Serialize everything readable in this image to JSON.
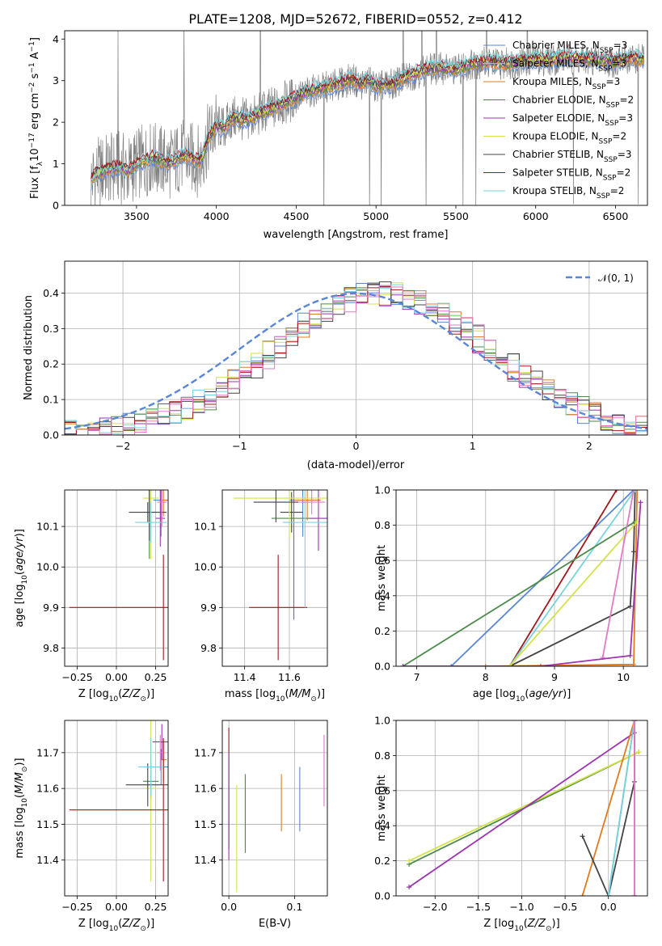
{
  "colors": {
    "Chabrier MILES": "#5a86d8",
    "Salpeter MILES": "#b3b3b3",
    "Kroupa MILES": "#e07b1f",
    "Chabrier ELODIE": "#4e8a4a",
    "Salpeter ELODIE": "#9b35b0",
    "Kroupa ELODIE": "#d4e24a",
    "Chabrier STELIB": "#444444",
    "Salpeter STELIB": "#a3161c",
    "Kroupa STELIB": "#79d3dc",
    "pink": "#e27bc4"
  },
  "chart_data": [
    {
      "id": "spectrum",
      "type": "line",
      "title": "PLATE=1208, MJD=52672, FIBERID=0552, z=0.412",
      "xlabel": "wavelength [Angstrom, rest frame]",
      "ylabel": "Flux [f_λ 10^-17 erg cm^-2 s^-1 A^-1]",
      "xlim": [
        3050,
        6700
      ],
      "ylim": [
        0,
        4.2
      ],
      "xticks": [
        3500,
        4000,
        4500,
        5000,
        5500,
        6000,
        6500
      ],
      "yticks": [
        0,
        1,
        2,
        3,
        4
      ],
      "grid": false,
      "legend_position": "upper-right",
      "legend": [
        {
          "name": "Chabrier MILES",
          "nssp": "3"
        },
        {
          "name": "Salpeter MILES",
          "nssp": "3"
        },
        {
          "name": "Kroupa MILES",
          "nssp": "3"
        },
        {
          "name": "Chabrier ELODIE",
          "nssp": "2"
        },
        {
          "name": "Salpeter ELODIE",
          "nssp": "3"
        },
        {
          "name": "Kroupa ELODIE",
          "nssp": "2"
        },
        {
          "name": "Chabrier STELIB",
          "nssp": "3"
        },
        {
          "name": "Salpeter STELIB",
          "nssp": "2"
        },
        {
          "name": "Kroupa STELIB",
          "nssp": "2"
        }
      ],
      "model_continuum": {
        "x": [
          3215,
          3230,
          3300,
          3400,
          3450,
          3500,
          3600,
          3700,
          3800,
          3900,
          3950,
          4000,
          4050,
          4100,
          4200,
          4300,
          4400,
          4500,
          4600,
          4700,
          4800,
          4850,
          4900,
          4950,
          5000,
          5100,
          5200,
          5300,
          5400,
          5500,
          5600,
          5700,
          5800,
          5900,
          6000,
          6100,
          6200,
          6300,
          6400,
          6500,
          6600,
          6680
        ],
        "y": [
          0.55,
          0.7,
          0.85,
          0.92,
          0.82,
          1.0,
          1.15,
          1.0,
          1.2,
          1.05,
          1.6,
          1.9,
          1.85,
          2.1,
          2.05,
          2.25,
          2.4,
          2.6,
          2.75,
          2.85,
          2.95,
          3.05,
          2.9,
          3.0,
          2.85,
          2.9,
          3.1,
          3.25,
          3.3,
          3.25,
          3.4,
          3.45,
          3.4,
          3.45,
          3.5,
          3.5,
          3.55,
          3.5,
          3.5,
          3.45,
          3.55,
          3.5
        ]
      }
    },
    {
      "id": "residuals",
      "type": "histogram",
      "xlabel": "(data-model)/error",
      "ylabel": "Normed distribution",
      "xlim": [
        -2.5,
        2.5
      ],
      "ylim": [
        0,
        0.49
      ],
      "xticks": [
        -2,
        -1,
        0,
        1,
        2
      ],
      "yticks": [
        0.0,
        0.1,
        0.2,
        0.3,
        0.4
      ],
      "grid": true,
      "legend_position": "upper-right",
      "reference_label": "𝒩(0, 1)"
    },
    {
      "id": "age_vs_Z",
      "type": "errorbar",
      "xlabel": "Z [log10(Z/Z⊙)]",
      "ylabel": "age  [log10(age/yr)]",
      "xlim": [
        -0.33,
        0.33
      ],
      "ylim": [
        9.755,
        10.19
      ],
      "xticks": [
        -0.25,
        0.0,
        0.25
      ],
      "yticks": [
        9.8,
        9.9,
        10.0,
        10.1
      ],
      "grid": true,
      "points": [
        {
          "x": 0.285,
          "y": 10.165,
          "xerr": 0.05,
          "yerr": 0.09,
          "color": "#5a86d8"
        },
        {
          "x": 0.3,
          "y": 10.165,
          "xerr": 0.02,
          "yerr": 0.04,
          "color": "#e07b1f"
        },
        {
          "x": 0.2,
          "y": 10.135,
          "xerr": 0.12,
          "yerr": 0.025,
          "color": "#444444"
        },
        {
          "x": 0.21,
          "y": 10.12,
          "xerr": 0.0,
          "yerr": 0.1,
          "color": "#4e8a4a"
        },
        {
          "x": 0.28,
          "y": 10.12,
          "xerr": 0.03,
          "yerr": 0.07,
          "color": "#9b35b0"
        },
        {
          "x": 0.22,
          "y": 10.17,
          "xerr": 0.05,
          "yerr": 0.15,
          "color": "#d4e24a"
        },
        {
          "x": 0.21,
          "y": 10.165,
          "xerr": 0.0,
          "yerr": 0.1,
          "color": "#444444"
        },
        {
          "x": 0.3,
          "y": 9.9,
          "xerr": 0.6,
          "yerr": 0.13,
          "color": "#a3161c"
        },
        {
          "x": 0.22,
          "y": 10.11,
          "xerr": 0.1,
          "yerr": 0.05,
          "color": "#79d3dc"
        },
        {
          "x": 0.29,
          "y": 10.16,
          "xerr": 0.03,
          "yerr": 0.06,
          "color": "#e27bc4"
        }
      ]
    },
    {
      "id": "age_vs_mass",
      "type": "errorbar",
      "xlabel": "mass [log10(M/M⊙)]",
      "ylabel": "",
      "xlim": [
        11.3,
        11.77
      ],
      "ylim": [
        9.755,
        10.19
      ],
      "xticks": [
        11.4,
        11.6
      ],
      "yticks": [
        9.8,
        9.9,
        10.0,
        10.1
      ],
      "grid": true,
      "points": [
        {
          "x": 11.66,
          "y": 10.165,
          "xerr": 0.06,
          "yerr": 0.09,
          "color": "#5a86d8"
        },
        {
          "x": 11.68,
          "y": 10.165,
          "xerr": 0.06,
          "yerr": 0.05,
          "color": "#e07b1f"
        },
        {
          "x": 11.61,
          "y": 10.135,
          "xerr": 0.05,
          "yerr": 0.05,
          "color": "#444444"
        },
        {
          "x": 11.62,
          "y": 10.12,
          "xerr": 0.1,
          "yerr": 0.25,
          "color": "#4e8a4a"
        },
        {
          "x": 11.73,
          "y": 10.12,
          "xerr": 0.04,
          "yerr": 0.08,
          "color": "#9b35b0"
        },
        {
          "x": 11.6,
          "y": 10.17,
          "xerr": 0.25,
          "yerr": 0.1,
          "color": "#d4e24a"
        },
        {
          "x": 11.54,
          "y": 10.16,
          "xerr": 0.1,
          "yerr": 0.05,
          "color": "#444444"
        },
        {
          "x": 11.55,
          "y": 9.9,
          "xerr": 0.13,
          "yerr": 0.13,
          "color": "#a3161c"
        },
        {
          "x": 11.67,
          "y": 10.11,
          "xerr": 0.1,
          "yerr": 0.21,
          "color": "#79d3dc"
        },
        {
          "x": 11.7,
          "y": 10.16,
          "xerr": 0.06,
          "yerr": 0.03,
          "color": "#e27bc4"
        }
      ]
    },
    {
      "id": "mw_vs_age",
      "type": "line",
      "xlabel": "age  [log10(age/yr)]",
      "ylabel": "mass weight",
      "xlim": [
        6.7,
        10.35
      ],
      "ylim": [
        0,
        1.0
      ],
      "xticks": [
        7,
        8,
        9,
        10
      ],
      "yticks": [
        0.0,
        0.2,
        0.4,
        0.6,
        0.8,
        1.0
      ],
      "grid": true,
      "series": [
        {
          "color": "#5a86d8",
          "x": [
            7.5,
            10.15
          ],
          "y": [
            0.0,
            1.0
          ]
        },
        {
          "color": "#e07b1f",
          "x": [
            8.0,
            10.15,
            10.2
          ],
          "y": [
            0.0,
            0.01,
            1.0
          ]
        },
        {
          "color": "#444444",
          "x": [
            8.35,
            10.1,
            10.15,
            10.17
          ],
          "y": [
            0.0,
            0.34,
            0.65,
            1.0
          ]
        },
        {
          "color": "#a3161c",
          "x": [
            8.35,
            9.9
          ],
          "y": [
            0.0,
            1.0
          ]
        },
        {
          "color": "#79d3dc",
          "x": [
            8.35,
            10.17
          ],
          "y": [
            0.0,
            1.0
          ]
        },
        {
          "color": "#4e8a4a",
          "x": [
            6.8,
            10.17
          ],
          "y": [
            0.0,
            0.82
          ]
        },
        {
          "color": "#d4e24a",
          "x": [
            8.35,
            10.2
          ],
          "y": [
            0.0,
            0.82
          ]
        },
        {
          "color": "#e27bc4",
          "x": [
            9.7,
            10.15
          ],
          "y": [
            0.05,
            1.0
          ]
        },
        {
          "color": "#9b35b0",
          "x": [
            6.8,
            8.8,
            10.1,
            10.25
          ],
          "y": [
            0.0,
            0.0,
            0.06,
            0.93
          ]
        }
      ]
    },
    {
      "id": "mass_vs_Z",
      "type": "errorbar",
      "xlabel": "Z [log10(Z/Z⊙)]",
      "ylabel": "mass [log10(M/M⊙)]",
      "xlim": [
        -0.33,
        0.33
      ],
      "ylim": [
        11.3,
        11.79
      ],
      "xticks": [
        -0.25,
        0.0,
        0.25
      ],
      "yticks": [
        11.4,
        11.5,
        11.6,
        11.7
      ],
      "grid": true,
      "points": [
        {
          "x": 0.285,
          "y": 11.66,
          "xerr": 0.05,
          "yerr": 0.05,
          "color": "#5a86d8"
        },
        {
          "x": 0.3,
          "y": 11.68,
          "xerr": 0.02,
          "yerr": 0.06,
          "color": "#e07b1f"
        },
        {
          "x": 0.22,
          "y": 11.62,
          "xerr": 0.05,
          "yerr": 0.05,
          "color": "#4e8a4a"
        },
        {
          "x": 0.29,
          "y": 11.73,
          "xerr": 0.06,
          "yerr": 0.05,
          "color": "#9b35b0"
        },
        {
          "x": 0.22,
          "y": 11.6,
          "xerr": 0.04,
          "yerr": 0.26,
          "color": "#d4e24a"
        },
        {
          "x": 0.2,
          "y": 11.61,
          "xerr": 0.14,
          "yerr": 0.06,
          "color": "#444444"
        },
        {
          "x": 0.3,
          "y": 11.54,
          "xerr": 0.6,
          "yerr": 0.2,
          "color": "#a3161c"
        },
        {
          "x": 0.22,
          "y": 11.66,
          "xerr": 0.08,
          "yerr": 0.08,
          "color": "#79d3dc"
        },
        {
          "x": 0.28,
          "y": 11.7,
          "xerr": 0.02,
          "yerr": 0.05,
          "color": "#e27bc4"
        }
      ]
    },
    {
      "id": "mass_vs_ebv",
      "type": "errorbar",
      "xlabel": "E(B-V)",
      "ylabel": "",
      "xlim": [
        -0.01,
        0.15
      ],
      "ylim": [
        11.3,
        11.79
      ],
      "xticks": [
        0.0,
        0.1
      ],
      "yticks": [
        11.4,
        11.5,
        11.6,
        11.7
      ],
      "grid": true,
      "points": [
        {
          "x": 0.0,
          "y": 11.6,
          "xerr": 0,
          "yerr": 0.17,
          "color": "#a3161c"
        },
        {
          "x": 0.0,
          "y": 11.55,
          "xerr": 0,
          "yerr": 0.15,
          "color": "#9b35b0"
        },
        {
          "x": 0.012,
          "y": 11.46,
          "xerr": 0,
          "yerr": 0.15,
          "color": "#d4e24a"
        },
        {
          "x": 0.025,
          "y": 11.53,
          "xerr": 0,
          "yerr": 0.11,
          "color": "#4e8a4a"
        },
        {
          "x": 0.08,
          "y": 11.56,
          "xerr": 0,
          "yerr": 0.08,
          "color": "#e07b1f"
        },
        {
          "x": 0.108,
          "y": 11.57,
          "xerr": 0,
          "yerr": 0.09,
          "color": "#5a86d8"
        },
        {
          "x": 0.145,
          "y": 11.65,
          "xerr": 0,
          "yerr": 0.1,
          "color": "#e27bc4"
        }
      ]
    },
    {
      "id": "mw_vs_Z",
      "type": "line",
      "xlabel": "Z [log10(Z/Z⊙)]",
      "ylabel": "mass weight",
      "xlim": [
        -2.45,
        0.45
      ],
      "ylim": [
        0,
        1.0
      ],
      "xticks": [
        -2.0,
        -1.5,
        -1.0,
        -0.5,
        0.0
      ],
      "yticks": [
        0.0,
        0.2,
        0.4,
        0.6,
        0.8,
        1.0
      ],
      "grid": true,
      "series": [
        {
          "color": "#4e8a4a",
          "x": [
            -2.3,
            0.35
          ],
          "y": [
            0.18,
            0.82
          ]
        },
        {
          "color": "#d4e24a",
          "x": [
            -2.3,
            0.35
          ],
          "y": [
            0.2,
            0.82
          ]
        },
        {
          "color": "#9b35b0",
          "x": [
            -2.3,
            0.3,
            0.3
          ],
          "y": [
            0.05,
            0.93,
            0.0
          ]
        },
        {
          "color": "#e07b1f",
          "x": [
            -0.3,
            0.3
          ],
          "y": [
            0.0,
            1.0
          ]
        },
        {
          "color": "#444444",
          "x": [
            -0.3,
            0.0,
            0.3,
            0.3
          ],
          "y": [
            0.34,
            0.0,
            0.65,
            1.0
          ]
        },
        {
          "color": "#5a86d8",
          "x": [
            0.0,
            0.3
          ],
          "y": [
            0.0,
            1.0
          ]
        },
        {
          "color": "#79d3dc",
          "x": [
            0.0,
            0.3
          ],
          "y": [
            0.0,
            1.0
          ]
        },
        {
          "color": "#e27bc4",
          "x": [
            0.3,
            0.3
          ],
          "y": [
            0.0,
            1.0
          ]
        }
      ]
    }
  ]
}
